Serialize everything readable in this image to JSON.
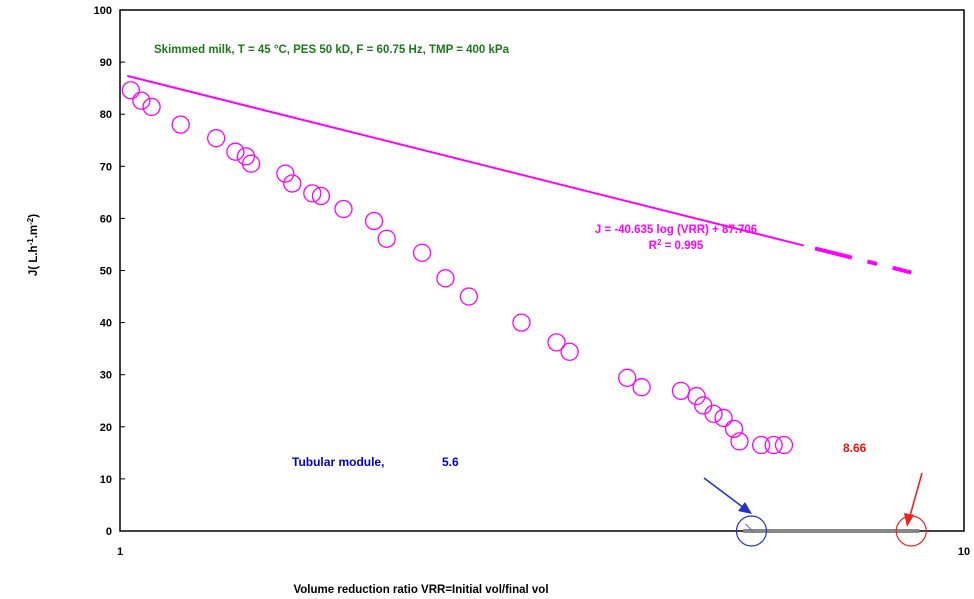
{
  "chart_data": {
    "type": "scatter",
    "title": "Skimmed milk, T = 45 °C, PES 50 kD, F = 60.75 Hz, TMP = 400 kPa",
    "xlabel": "Volume reduction ratio VRR=Initial vol/final vol",
    "ylabel_parts": [
      "J( L.h",
      "-1",
      ".m",
      "-2",
      ")"
    ],
    "x_scale": "log",
    "xlim": [
      1,
      10
    ],
    "ylim": [
      0,
      100
    ],
    "x_ticks": [
      "1",
      "10"
    ],
    "y_ticks": [
      "0",
      "10",
      "20",
      "30",
      "40",
      "50",
      "60",
      "70",
      "80",
      "90",
      "100"
    ],
    "grid": false,
    "legend": "none",
    "marker_color": "#ff00ff",
    "fit_color": "#ff00ff",
    "series": [
      {
        "x": [
          1.03,
          1.06,
          1.09,
          1.18,
          1.3,
          1.37,
          1.41,
          1.43,
          1.57,
          1.6,
          1.69,
          1.73,
          1.84,
          2.0,
          2.07,
          2.28,
          2.43,
          2.59,
          2.99,
          3.29,
          3.41,
          3.99,
          4.15,
          4.62,
          4.82,
          4.91,
          5.05,
          5.19,
          5.34,
          5.42,
          5.75,
          5.95,
          6.12
        ],
        "y": [
          84.6,
          82.6,
          81.4,
          78.0,
          75.4,
          72.8,
          71.9,
          70.5,
          68.6,
          66.7,
          64.8,
          64.3,
          61.8,
          59.5,
          56.1,
          53.4,
          48.5,
          45.0,
          40.0,
          36.2,
          34.4,
          29.4,
          27.6,
          26.9,
          25.9,
          24.1,
          22.5,
          21.7,
          19.6,
          17.2,
          16.5,
          16.5,
          16.5
        ]
      }
    ],
    "fit": {
      "equation": "J = -40.635  log (VRR) + 87.706",
      "r2_label": "R",
      "r2_sup": "2",
      "r2_value": " = 0.995",
      "x_start": 1.02,
      "x_end": 6.46,
      "extrap_x_start": 6.66,
      "extrap_x_end": 8.66,
      "slope": -40.635,
      "intercept": 87.706
    },
    "annotations": {
      "module_label": "Tubular module,",
      "module_value": "5.6",
      "module_color": "#0000cc",
      "extrap_value": "8.66",
      "extrap_color": "#ee1111",
      "zero_points": [
        {
          "x": 5.6,
          "color": "#2233cc"
        },
        {
          "x": 8.66,
          "color": "#ee2222"
        }
      ]
    }
  }
}
